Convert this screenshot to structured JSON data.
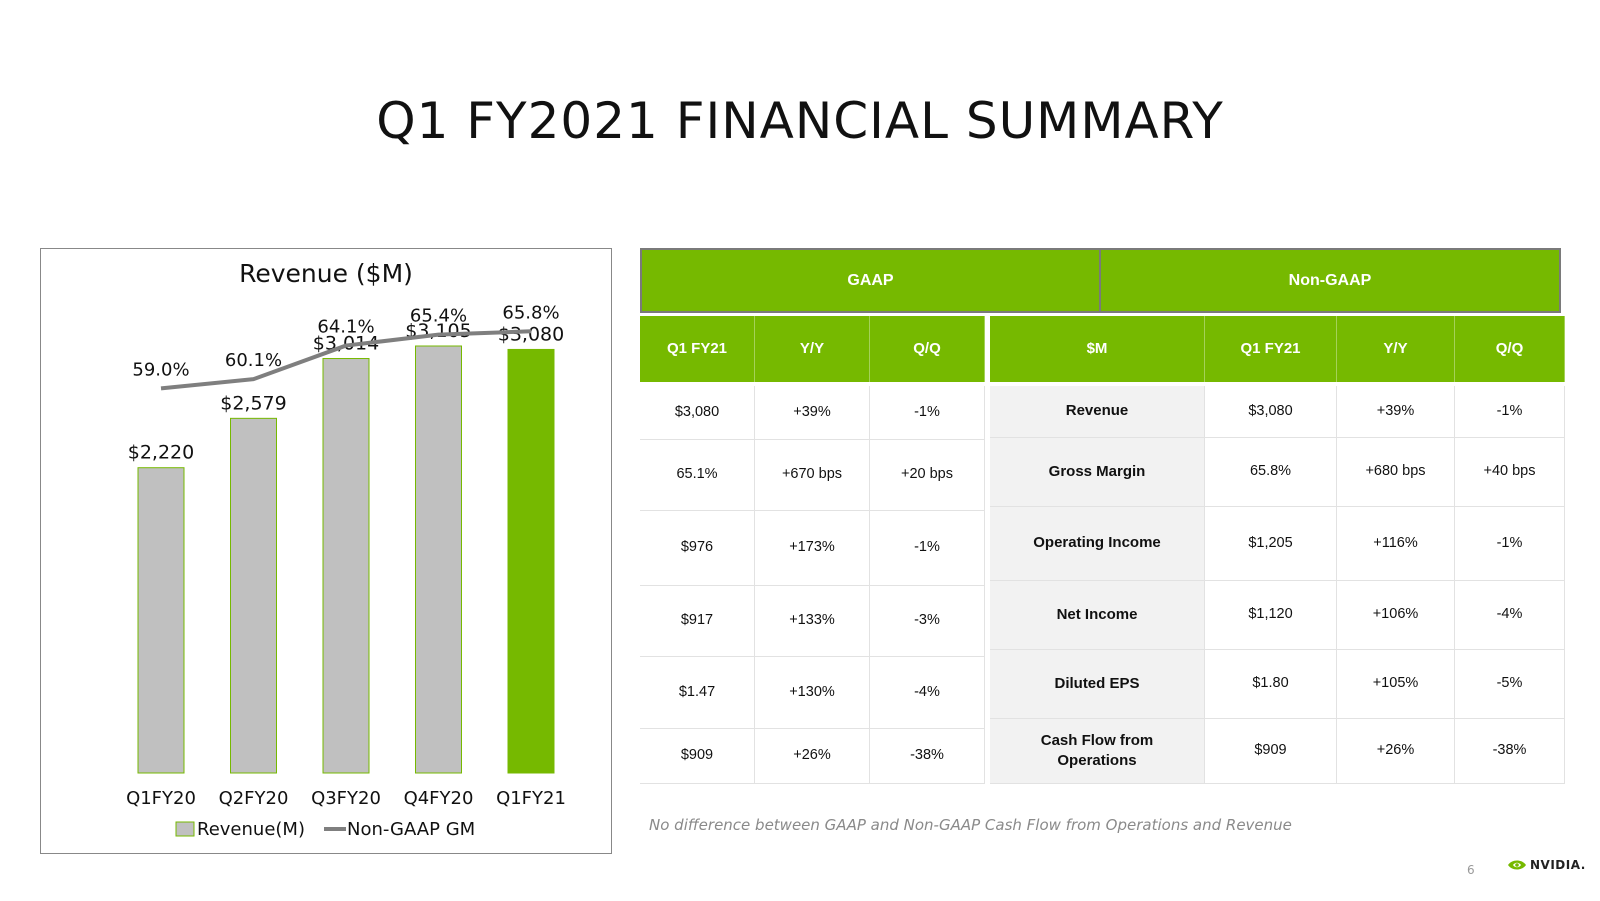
{
  "slide": {
    "title": "Q1 FY2021 FINANCIAL SUMMARY",
    "footnote": "No difference between GAAP and Non-GAAP Cash Flow from Operations and Revenue",
    "page_number": "6",
    "logo_text": "NVIDIA."
  },
  "colors": {
    "accent": "#76b900",
    "bar_gray": "#c0c0c0",
    "line_gray": "#7f7f7f",
    "label_bg": "#f2f2f2"
  },
  "chart_data": {
    "type": "bar",
    "title": "Revenue ($M)",
    "categories": [
      "Q1FY20",
      "Q2FY20",
      "Q3FY20",
      "Q4FY20",
      "Q1FY21"
    ],
    "series": [
      {
        "name": "Revenue(M)",
        "type": "bar",
        "values": [
          2220,
          2579,
          3014,
          3105,
          3080
        ],
        "labels": [
          "$2,220",
          "$2,579",
          "$3,014",
          "$3,105",
          "$3,080"
        ],
        "highlight_index": 4
      },
      {
        "name": "Non-GAAP GM",
        "type": "line",
        "values": [
          59.0,
          60.1,
          64.1,
          65.4,
          65.8
        ],
        "labels": [
          "59.0%",
          "60.1%",
          "64.1%",
          "65.4%",
          "65.8%"
        ]
      }
    ],
    "legend": "bottom",
    "grid": false
  },
  "table": {
    "groups": [
      "GAAP",
      "Non-GAAP"
    ],
    "gaap_headers": [
      "Q1 FY21",
      "Y/Y",
      "Q/Q"
    ],
    "nongaap_headers": [
      "$M",
      "Q1 FY21",
      "Y/Y",
      "Q/Q"
    ],
    "gaap_rows": [
      [
        "$3,080",
        "+39%",
        "-1%"
      ],
      [
        "65.1%",
        "+670 bps",
        "+20 bps"
      ],
      [
        "$976",
        "+173%",
        "-1%"
      ],
      [
        "$917",
        "+133%",
        "-3%"
      ],
      [
        "$1.47",
        "+130%",
        "-4%"
      ],
      [
        "$909",
        "+26%",
        "-38%"
      ]
    ],
    "nongaap_rows": [
      [
        "Revenue",
        "$3,080",
        "+39%",
        "-1%"
      ],
      [
        "Gross Margin",
        "65.8%",
        "+680 bps",
        "+40 bps"
      ],
      [
        "Operating Income",
        "$1,205",
        "+116%",
        "-1%"
      ],
      [
        "Net Income",
        "$1,120",
        "+106%",
        "-4%"
      ],
      [
        "Diluted EPS",
        "$1.80",
        "+105%",
        "-5%"
      ],
      [
        "Cash Flow from\nOperations",
        "$909",
        "+26%",
        "-38%"
      ]
    ]
  }
}
